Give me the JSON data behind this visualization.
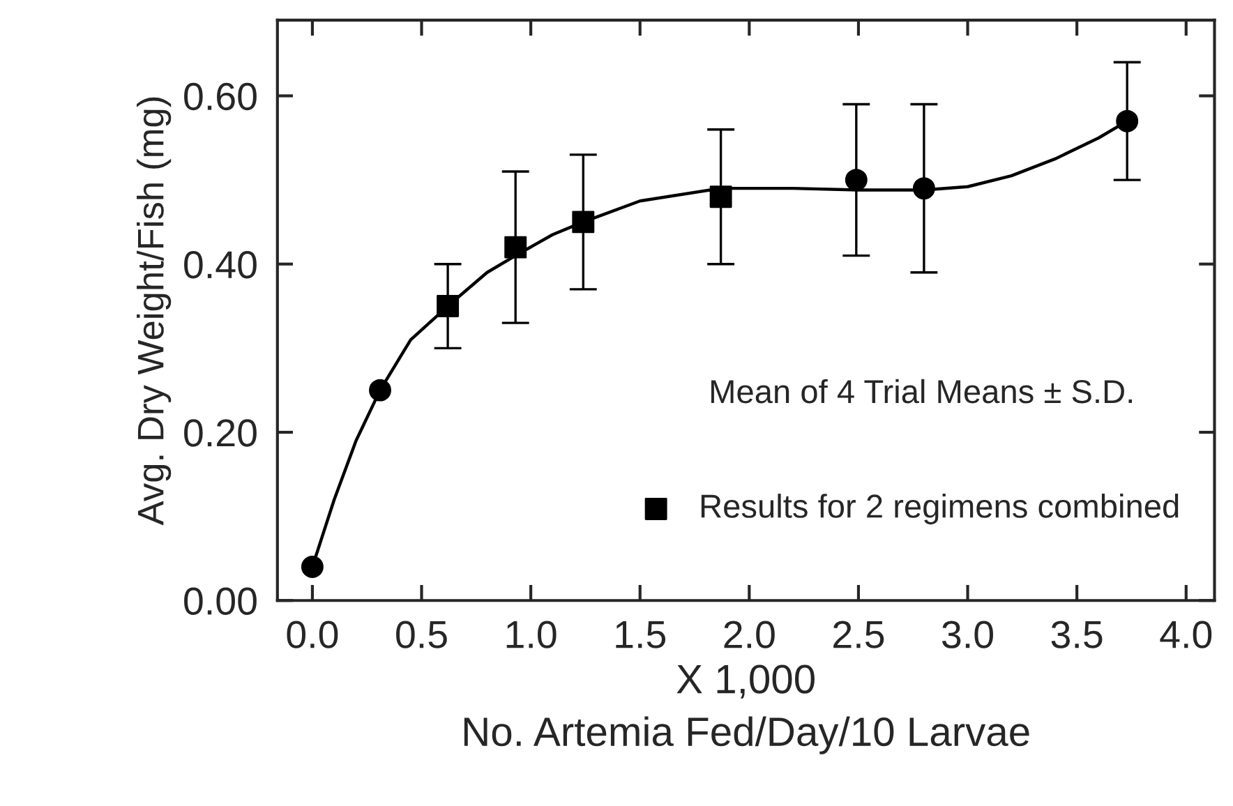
{
  "chart_data": {
    "type": "scatter",
    "xlabel": "X 1,000\nNo. Artemia Fed/Day/10 Larvae",
    "ylabel": "Avg. Dry Weight/Fish (mg)",
    "xlim": [
      -0.16,
      4.13
    ],
    "ylim": [
      0,
      0.69
    ],
    "xticks": [
      {
        "value": 0,
        "label": "0.0"
      },
      {
        "value": 0.5,
        "label": "0.5"
      },
      {
        "value": 1,
        "label": "1.0"
      },
      {
        "value": 1.5,
        "label": "1.5"
      },
      {
        "value": 2,
        "label": "2.0"
      },
      {
        "value": 2.5,
        "label": "2.5"
      },
      {
        "value": 3,
        "label": "3.0"
      },
      {
        "value": 3.5,
        "label": "3.5"
      },
      {
        "value": 4,
        "label": "4.0"
      }
    ],
    "yticks": [
      {
        "value": 0,
        "label": "0.00"
      },
      {
        "value": 0.2,
        "label": "0.20"
      },
      {
        "value": 0.4,
        "label": "0.40"
      },
      {
        "value": 0.6,
        "label": "0.60"
      }
    ],
    "grid": false,
    "legend": "bottom right",
    "annotations": [
      "Mean of 4 Trial Means ± S.D."
    ],
    "series": [
      {
        "type": "line",
        "color": "#000000",
        "marker": "none",
        "line_style": "solid",
        "x": [
          0,
          0.1,
          0.2,
          0.31,
          0.45,
          0.62,
          0.8,
          0.93,
          1.1,
          1.24,
          1.5,
          1.87,
          2.2,
          2.5,
          2.8,
          3.0,
          3.2,
          3.4,
          3.6,
          3.73
        ],
        "values": [
          0.04,
          0.12,
          0.19,
          0.25,
          0.31,
          0.35,
          0.39,
          0.41,
          0.435,
          0.45,
          0.475,
          0.49,
          0.49,
          0.488,
          0.488,
          0.492,
          0.505,
          0.525,
          0.55,
          0.57
        ]
      },
      {
        "color": "#000000",
        "marker": "circle",
        "x": [
          0,
          0.31,
          2.49,
          2.8,
          3.73
        ],
        "values": [
          0.04,
          0.25,
          0.5,
          0.49,
          0.57
        ],
        "errors": [
          null,
          null,
          [
            0.41,
            0.59
          ],
          [
            0.39,
            0.59
          ],
          [
            0.5,
            0.64
          ]
        ]
      },
      {
        "name": "Results for 2 regimens combined",
        "color": "#000000",
        "marker": "square",
        "x": [
          0.62,
          0.93,
          1.24,
          1.87
        ],
        "values": [
          0.35,
          0.42,
          0.45,
          0.48
        ],
        "errors": [
          [
            0.3,
            0.4
          ],
          [
            0.33,
            0.51
          ],
          [
            0.37,
            0.53
          ],
          [
            0.4,
            0.56
          ]
        ]
      }
    ]
  }
}
